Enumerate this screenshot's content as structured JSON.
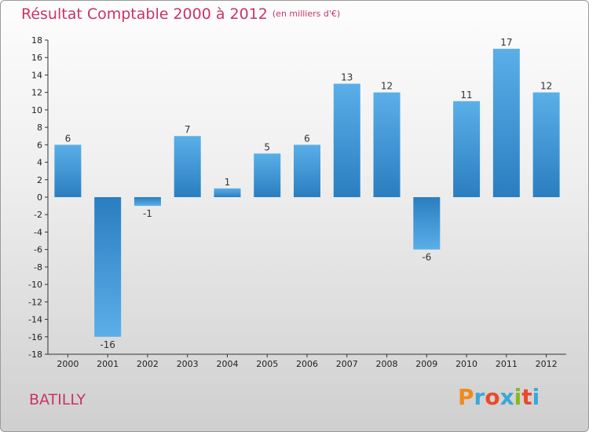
{
  "header": {
    "title": "Résultat Comptable 2000 à 2012",
    "subtitle": "(en milliers d'€)"
  },
  "footer": {
    "commune": "BATILLY",
    "brand": "Proxiti"
  },
  "colors": {
    "title": "#c8336a",
    "bar_light": "#5aafe8",
    "bar_dark": "#2a7ec0",
    "brand_letters": [
      "#f08a1c",
      "#3aa7d9",
      "#e84a2a",
      "#3aa7d9",
      "#86b81f",
      "#e84a2a",
      "#3aa7d9"
    ]
  },
  "chart_data": {
    "type": "bar",
    "title": "Résultat Comptable 2000 à 2012",
    "subtitle": "(en milliers d'€)",
    "xlabel": "",
    "ylabel": "",
    "categories": [
      "2000",
      "2001",
      "2002",
      "2003",
      "2004",
      "2005",
      "2006",
      "2007",
      "2008",
      "2009",
      "2010",
      "2011",
      "2012"
    ],
    "values": [
      6,
      -16,
      -1,
      7,
      1,
      5,
      6,
      13,
      12,
      -6,
      11,
      17,
      12
    ],
    "ylim": [
      -18,
      18
    ],
    "yticks": [
      18,
      16,
      14,
      12,
      10,
      8,
      6,
      4,
      2,
      0,
      -2,
      -4,
      -6,
      -8,
      -10,
      -12,
      -14,
      -16,
      -18
    ],
    "grid": false,
    "legend": "none"
  }
}
